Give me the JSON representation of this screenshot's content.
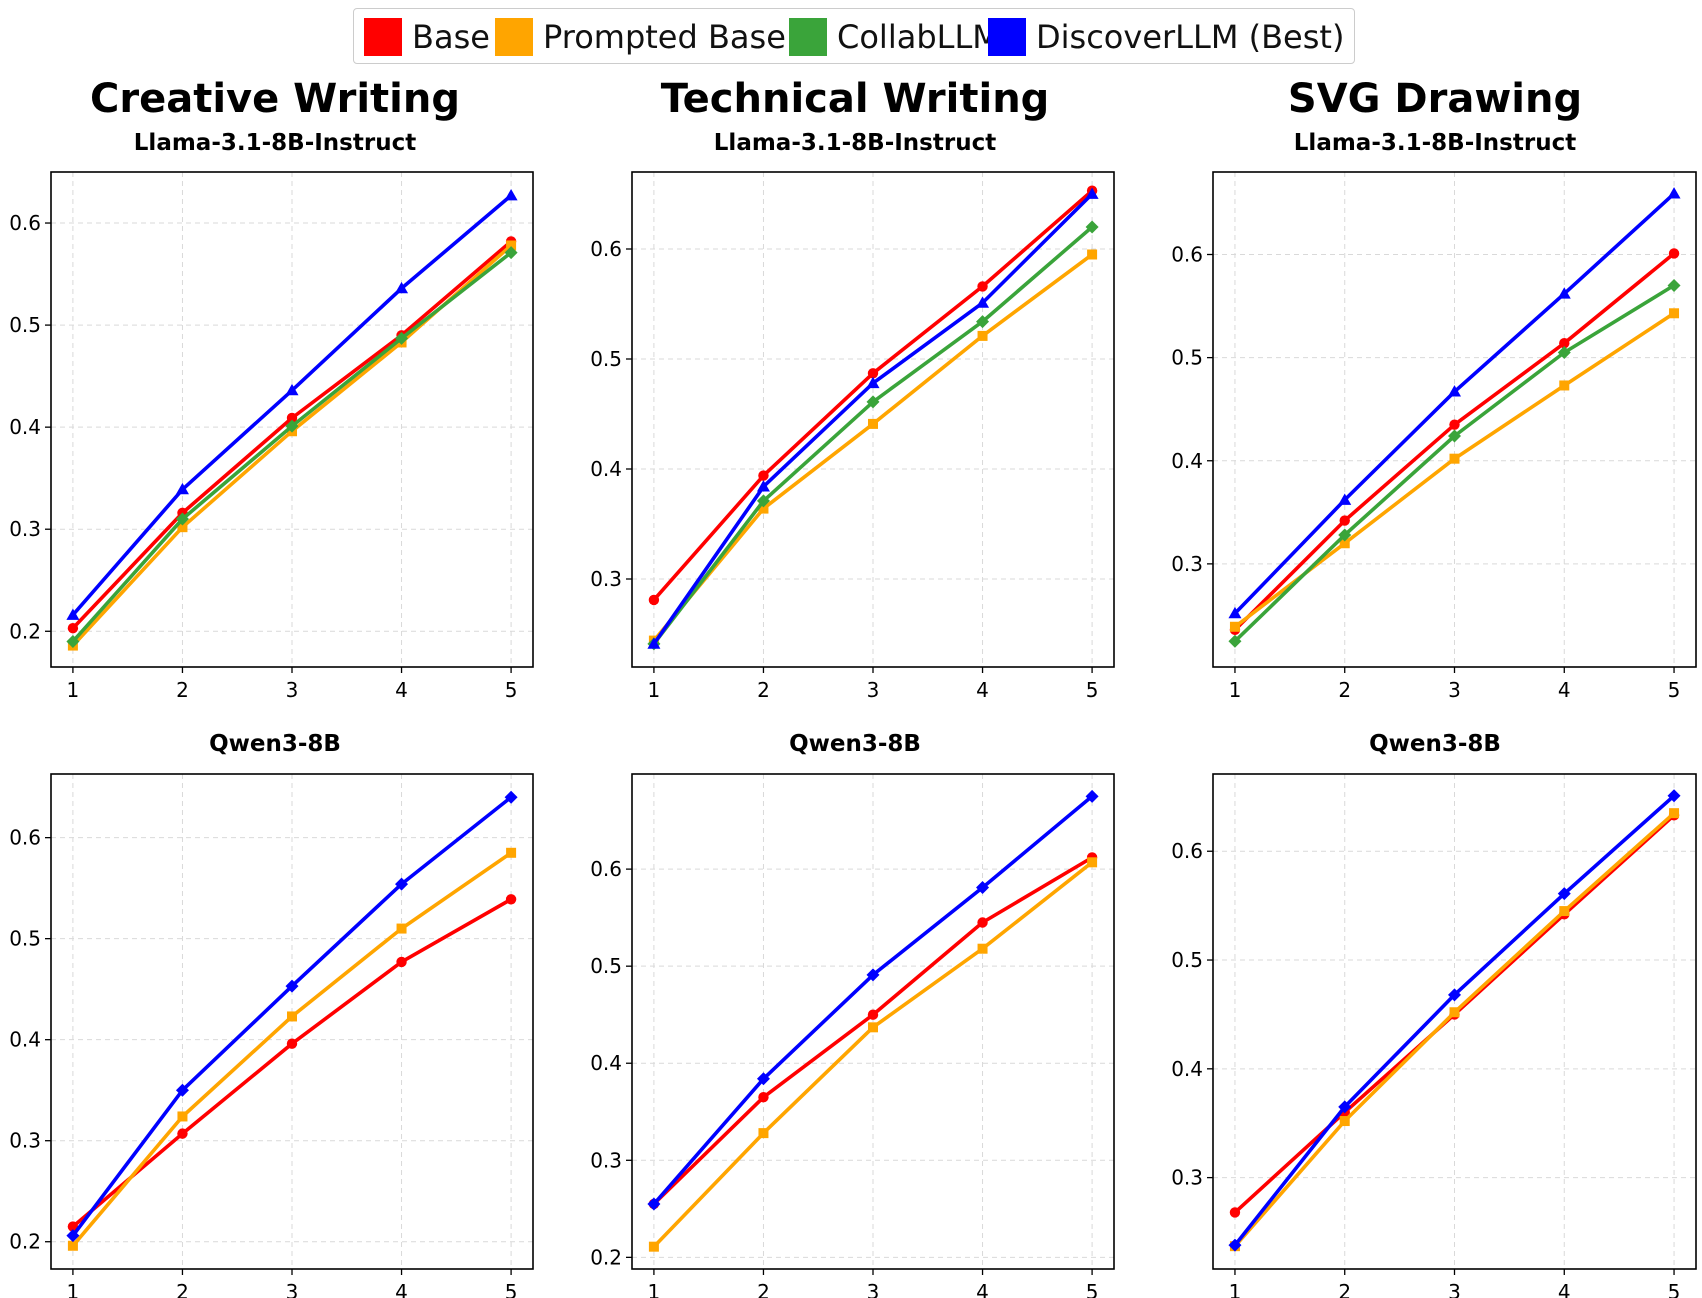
{
  "legend": [
    {
      "name": "Base",
      "color": "#ff0000"
    },
    {
      "name": "Prompted Base",
      "color": "#ffa500"
    },
    {
      "name": "CollabLLM",
      "color": "#3aa43a"
    },
    {
      "name": "DiscoverLLM (Best)",
      "color": "#0000ff"
    }
  ],
  "columns": [
    {
      "title": "Creative Writing"
    },
    {
      "title": "Technical Writing"
    },
    {
      "title": "SVG Drawing"
    }
  ],
  "rows": [
    {
      "subtitle": "Llama-3.1-8B-Instruct"
    },
    {
      "subtitle": "Qwen3-8B"
    }
  ],
  "chart_data": [
    {
      "type": "line",
      "title": "Creative Writing",
      "subtitle": "Llama-3.1-8B-Instruct",
      "x": [
        1,
        2,
        3,
        4,
        5
      ],
      "xlim": [
        0.8,
        5.2
      ],
      "ylim": [
        0.165,
        0.65
      ],
      "yticks": [
        0.2,
        0.3,
        0.4,
        0.5,
        0.6
      ],
      "grid": true,
      "series": [
        {
          "name": "Base",
          "color": "#ff0000",
          "marker": "circle",
          "values": [
            0.203,
            0.316,
            0.409,
            0.49,
            0.582
          ]
        },
        {
          "name": "Prompted Base",
          "color": "#ffa500",
          "marker": "square",
          "values": [
            0.186,
            0.302,
            0.396,
            0.483,
            0.578
          ]
        },
        {
          "name": "CollabLLM",
          "color": "#3aa43a",
          "marker": "diamond",
          "values": [
            0.19,
            0.31,
            0.401,
            0.487,
            0.571
          ]
        },
        {
          "name": "DiscoverLLM (Best)",
          "color": "#0000ff",
          "marker": "triangle",
          "values": [
            0.216,
            0.339,
            0.436,
            0.536,
            0.627
          ]
        }
      ]
    },
    {
      "type": "line",
      "title": "Technical Writing",
      "subtitle": "Llama-3.1-8B-Instruct",
      "x": [
        1,
        2,
        3,
        4,
        5
      ],
      "xlim": [
        0.8,
        5.2
      ],
      "ylim": [
        0.22,
        0.67
      ],
      "yticks": [
        0.3,
        0.4,
        0.5,
        0.6
      ],
      "grid": true,
      "series": [
        {
          "name": "Base",
          "color": "#ff0000",
          "marker": "circle",
          "values": [
            0.281,
            0.394,
            0.487,
            0.566,
            0.653
          ]
        },
        {
          "name": "Prompted Base",
          "color": "#ffa500",
          "marker": "square",
          "values": [
            0.244,
            0.364,
            0.441,
            0.521,
            0.595
          ]
        },
        {
          "name": "CollabLLM",
          "color": "#3aa43a",
          "marker": "diamond",
          "values": [
            0.241,
            0.371,
            0.461,
            0.534,
            0.62
          ]
        },
        {
          "name": "DiscoverLLM (Best)",
          "color": "#0000ff",
          "marker": "triangle",
          "values": [
            0.241,
            0.384,
            0.478,
            0.551,
            0.65
          ]
        }
      ]
    },
    {
      "type": "line",
      "title": "SVG Drawing",
      "subtitle": "Llama-3.1-8B-Instruct",
      "x": [
        1,
        2,
        3,
        4,
        5
      ],
      "xlim": [
        0.8,
        5.2
      ],
      "ylim": [
        0.2,
        0.68
      ],
      "yticks": [
        0.3,
        0.4,
        0.5,
        0.6
      ],
      "grid": true,
      "series": [
        {
          "name": "Base",
          "color": "#ff0000",
          "marker": "circle",
          "values": [
            0.236,
            0.342,
            0.435,
            0.514,
            0.601
          ]
        },
        {
          "name": "Prompted Base",
          "color": "#ffa500",
          "marker": "square",
          "values": [
            0.239,
            0.32,
            0.402,
            0.473,
            0.543
          ]
        },
        {
          "name": "CollabLLM",
          "color": "#3aa43a",
          "marker": "diamond",
          "values": [
            0.225,
            0.328,
            0.424,
            0.505,
            0.57
          ]
        },
        {
          "name": "DiscoverLLM (Best)",
          "color": "#0000ff",
          "marker": "triangle",
          "values": [
            0.252,
            0.362,
            0.467,
            0.562,
            0.659
          ]
        }
      ]
    },
    {
      "type": "line",
      "title": "Creative Writing",
      "subtitle": "Qwen3-8B",
      "x": [
        1,
        2,
        3,
        4,
        5
      ],
      "xlim": [
        0.8,
        5.2
      ],
      "ylim": [
        0.173,
        0.663
      ],
      "yticks": [
        0.2,
        0.3,
        0.4,
        0.5,
        0.6
      ],
      "grid": true,
      "series": [
        {
          "name": "Base",
          "color": "#ff0000",
          "marker": "circle",
          "values": [
            0.215,
            0.307,
            0.396,
            0.477,
            0.539
          ]
        },
        {
          "name": "Prompted Base",
          "color": "#ffa500",
          "marker": "square",
          "values": [
            0.196,
            0.324,
            0.423,
            0.51,
            0.585
          ]
        },
        {
          "name": "DiscoverLLM (Best)",
          "color": "#0000ff",
          "marker": "diamond",
          "values": [
            0.206,
            0.35,
            0.453,
            0.554,
            0.64
          ]
        }
      ]
    },
    {
      "type": "line",
      "title": "Technical Writing",
      "subtitle": "Qwen3-8B",
      "x": [
        1,
        2,
        3,
        4,
        5
      ],
      "xlim": [
        0.8,
        5.2
      ],
      "ylim": [
        0.188,
        0.698
      ],
      "yticks": [
        0.2,
        0.3,
        0.4,
        0.5,
        0.6
      ],
      "grid": true,
      "series": [
        {
          "name": "Base",
          "color": "#ff0000",
          "marker": "circle",
          "values": [
            0.255,
            0.365,
            0.45,
            0.545,
            0.612
          ]
        },
        {
          "name": "Prompted Base",
          "color": "#ffa500",
          "marker": "square",
          "values": [
            0.211,
            0.328,
            0.437,
            0.518,
            0.607
          ]
        },
        {
          "name": "DiscoverLLM (Best)",
          "color": "#0000ff",
          "marker": "diamond",
          "values": [
            0.255,
            0.384,
            0.491,
            0.581,
            0.675
          ]
        }
      ]
    },
    {
      "type": "line",
      "title": "SVG Drawing",
      "subtitle": "Qwen3-8B",
      "x": [
        1,
        2,
        3,
        4,
        5
      ],
      "xlim": [
        0.8,
        5.2
      ],
      "ylim": [
        0.216,
        0.671
      ],
      "yticks": [
        0.3,
        0.4,
        0.5,
        0.6
      ],
      "grid": true,
      "series": [
        {
          "name": "Base",
          "color": "#ff0000",
          "marker": "circle",
          "values": [
            0.268,
            0.36,
            0.45,
            0.542,
            0.633
          ]
        },
        {
          "name": "Prompted Base",
          "color": "#ffa500",
          "marker": "square",
          "values": [
            0.237,
            0.352,
            0.452,
            0.545,
            0.635
          ]
        },
        {
          "name": "DiscoverLLM (Best)",
          "color": "#0000ff",
          "marker": "diamond",
          "values": [
            0.238,
            0.365,
            0.468,
            0.561,
            0.651
          ]
        }
      ]
    }
  ]
}
